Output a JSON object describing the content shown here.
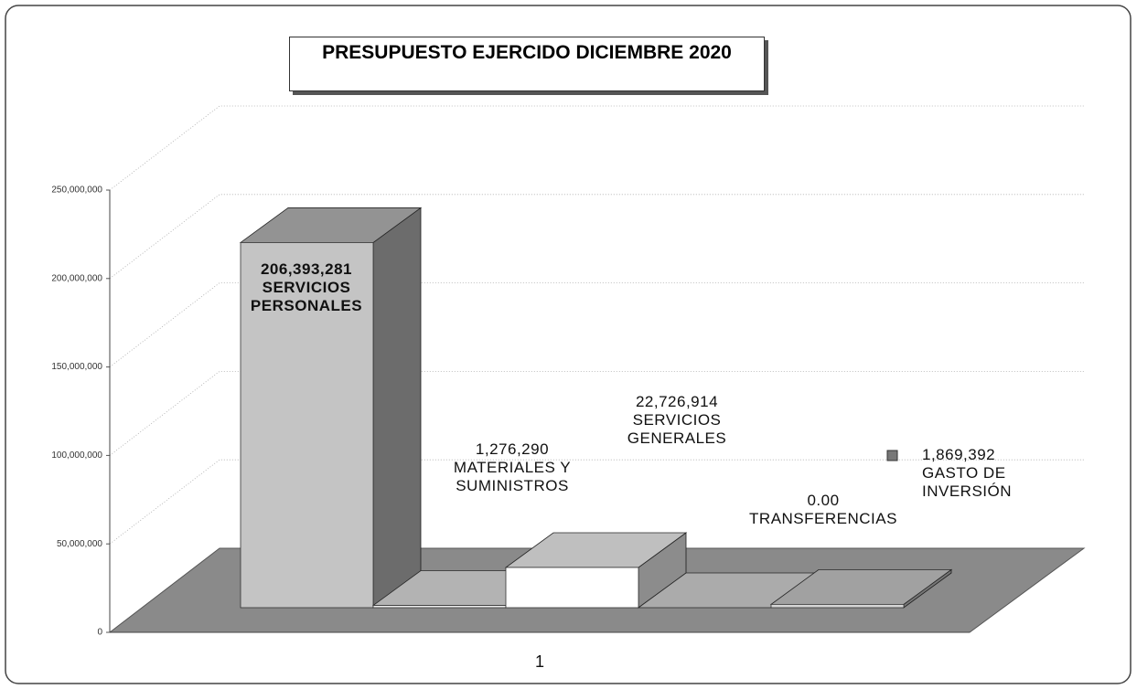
{
  "chart_data": {
    "type": "bar3d",
    "title": "PRESUPUESTO EJERCIDO DICIEMBRE 2020",
    "categories": [
      "1"
    ],
    "series": [
      {
        "name": "SERVICIOS PERSONALES",
        "color": "#c4c4c4",
        "values": [
          206393281
        ],
        "value_labels": [
          "206,393,281"
        ]
      },
      {
        "name": "MATERIALES Y SUMINISTROS",
        "color": "#eeeeee",
        "values": [
          1276290
        ],
        "value_labels": [
          "1,276,290"
        ]
      },
      {
        "name": "SERVICIOS GENERALES",
        "color": "#ffffff",
        "values": [
          22726914
        ],
        "value_labels": [
          "22,726,914"
        ]
      },
      {
        "name": "TRANSFERENCIAS",
        "color": "#e4e4e4",
        "values": [
          0
        ],
        "value_labels": [
          "0.00"
        ]
      },
      {
        "name": "GASTO DE INVERSIÓN",
        "color": "#d6d6d6",
        "values": [
          1869392
        ],
        "value_labels": [
          "1,869,392"
        ]
      }
    ],
    "ylim": [
      0,
      250000000
    ],
    "yticks": [
      0,
      {
        "value": 50000000,
        "label": "50,000,000"
      },
      {
        "value": 100000000,
        "label": "100,000,000"
      },
      {
        "value": 150000000,
        "label": "150,000,000"
      },
      {
        "value": 200000000,
        "label": "200,000,000"
      },
      {
        "value": 250000000,
        "label": "250,000,000"
      }
    ],
    "grid": true
  }
}
